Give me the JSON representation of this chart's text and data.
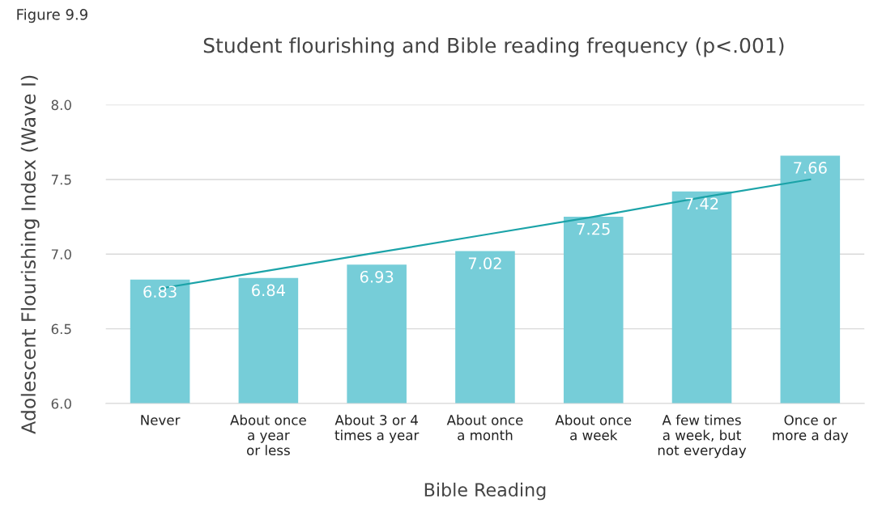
{
  "chart_data": {
    "type": "bar",
    "title": "Student flourishing and Bible reading frequency (p<.001)",
    "xlabel": "Bible Reading",
    "ylabel": "Adolescent Flourishing Index (Wave I)",
    "annotations": [
      "Figure 9.9"
    ],
    "categories": [
      "Never",
      "About once\na year\nor less",
      "About 3 or 4\ntimes a year",
      "About once\na month",
      "About once\na week",
      "A few times\na week, but\nnot everyday",
      "Once or\nmore a day"
    ],
    "series": [
      {
        "color": "#76cdd8",
        "values": [
          6.83,
          6.84,
          6.93,
          7.02,
          7.25,
          7.42,
          7.66
        ],
        "value_labels": [
          "6.83",
          "6.84",
          "6.93",
          "7.02",
          "7.25",
          "7.42",
          "7.66"
        ]
      },
      {
        "type": "line",
        "color": "#1ba3a8",
        "values": [
          6.77,
          6.89,
          7.01,
          7.13,
          7.25,
          7.38,
          7.5
        ]
      }
    ],
    "ylim": [
      6.0,
      8.0
    ],
    "yticks": [
      {
        "value": 6.0,
        "label": "6.0"
      },
      {
        "value": 6.5,
        "label": "6.5"
      },
      {
        "value": 7.0,
        "label": "7.0"
      },
      {
        "value": 7.5,
        "label": "7.5"
      },
      {
        "value": 8.0,
        "label": "8.0"
      }
    ],
    "grid": "y",
    "legend": false
  }
}
